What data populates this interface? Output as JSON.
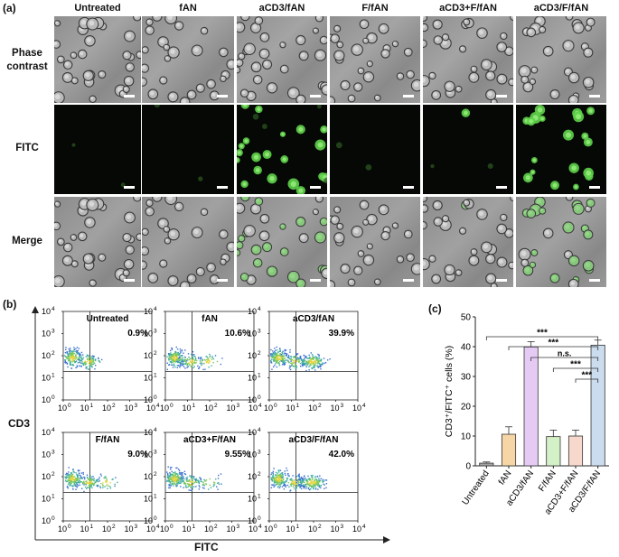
{
  "panel_a": {
    "label": "(a)",
    "columns": [
      "Untreated",
      "fAN",
      "aCD3/fAN",
      "F/fAN",
      "aCD3+F/fAN",
      "aCD3/F/fAN"
    ],
    "rows": [
      "Phase contrast",
      "FITC",
      "Merge"
    ],
    "fluorescence_level": [
      0.02,
      0.03,
      0.55,
      0.03,
      0.04,
      0.75
    ],
    "colors": {
      "fitc_green": "#5fd34a"
    }
  },
  "panel_b": {
    "label": "(b)",
    "xlabel": "FITC",
    "ylabel": "CD3",
    "plots": [
      {
        "title": "Untreated",
        "percent": "0.9%"
      },
      {
        "title": "fAN",
        "percent": "10.6%"
      },
      {
        "title": "aCD3/fAN",
        "percent": "39.9%"
      },
      {
        "title": "F/fAN",
        "percent": "9.0%"
      },
      {
        "title": "aCD3+F/fAN",
        "percent": "9.55%"
      },
      {
        "title": "aCD3/F/fAN",
        "percent": "42.0%"
      }
    ],
    "x_ticks": [
      "10",
      "10",
      "10",
      "10",
      "10"
    ],
    "x_tick_exponents": [
      "0",
      "1",
      "2",
      "3",
      "4"
    ],
    "y_ticks": [
      "10",
      "10",
      "10",
      "10",
      "10"
    ],
    "y_tick_exponents": [
      "0",
      "1",
      "2",
      "3",
      "4"
    ]
  },
  "chart_data": {
    "type": "bar",
    "label": "(c)",
    "title": "",
    "categories": [
      "Untreated",
      "fAN",
      "aCD3/fAN",
      "F/fAN",
      "aCD3+F/fAN",
      "aCD3/F/fAN"
    ],
    "values": [
      0.9,
      10.6,
      39.9,
      9.8,
      10.0,
      40.5
    ],
    "errors": [
      0.4,
      2.5,
      1.8,
      2.2,
      2.0,
      1.7
    ],
    "colors": [
      "#a3a3a3",
      "#f6d6a6",
      "#e5cbf4",
      "#d3f0c6",
      "#f7d8cc",
      "#cbdcef"
    ],
    "ylabel": "CD3⁺/FITC⁺ cells (%)",
    "ylim": [
      0,
      50
    ],
    "yticks": [
      0,
      10,
      20,
      30,
      40,
      50
    ],
    "significance": [
      {
        "from": "Untreated",
        "to": "aCD3/F/fAN",
        "label": "***"
      },
      {
        "from": "fAN",
        "to": "aCD3/F/fAN",
        "label": "***"
      },
      {
        "from": "aCD3/fAN",
        "to": "aCD3/F/fAN",
        "label": "n.s."
      },
      {
        "from": "F/fAN",
        "to": "aCD3/F/fAN",
        "label": "***"
      },
      {
        "from": "aCD3+F/fAN",
        "to": "aCD3/F/fAN",
        "label": "***"
      }
    ]
  }
}
